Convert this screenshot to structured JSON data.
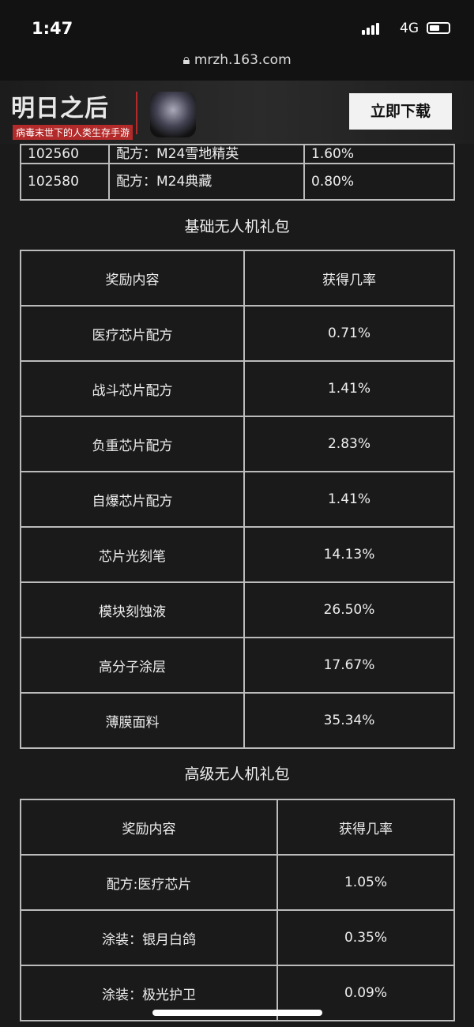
{
  "status": {
    "time": "1:47",
    "network": "4G"
  },
  "browser": {
    "url": "mrzh.163.com"
  },
  "banner": {
    "logo": "明日之后",
    "slogan": "病毒末世下的人类生存手游",
    "download": "立即下载"
  },
  "table1": {
    "rows": [
      [
        "102560",
        "配方：M24雪地精英",
        "1.60%"
      ],
      [
        "102580",
        "配方：M24典藏",
        "0.80%"
      ]
    ]
  },
  "section2": {
    "title": "基础无人机礼包",
    "headers": [
      "奖励内容",
      "获得几率"
    ],
    "rows": [
      [
        "医疗芯片配方",
        "0.71%"
      ],
      [
        "战斗芯片配方",
        "1.41%"
      ],
      [
        "负重芯片配方",
        "2.83%"
      ],
      [
        "自爆芯片配方",
        "1.41%"
      ],
      [
        "芯片光刻笔",
        "14.13%"
      ],
      [
        "模块刻蚀液",
        "26.50%"
      ],
      [
        "高分子涂层",
        "17.67%"
      ],
      [
        "薄膜面料",
        "35.34%"
      ]
    ]
  },
  "section3": {
    "title": "高级无人机礼包",
    "headers": [
      "奖励内容",
      "获得几率"
    ],
    "rows": [
      [
        "配方:医疗芯片",
        "1.05%"
      ],
      [
        "涂装：银月白鸽",
        "0.35%"
      ],
      [
        "涂装：极光护卫",
        "0.09%"
      ]
    ]
  }
}
